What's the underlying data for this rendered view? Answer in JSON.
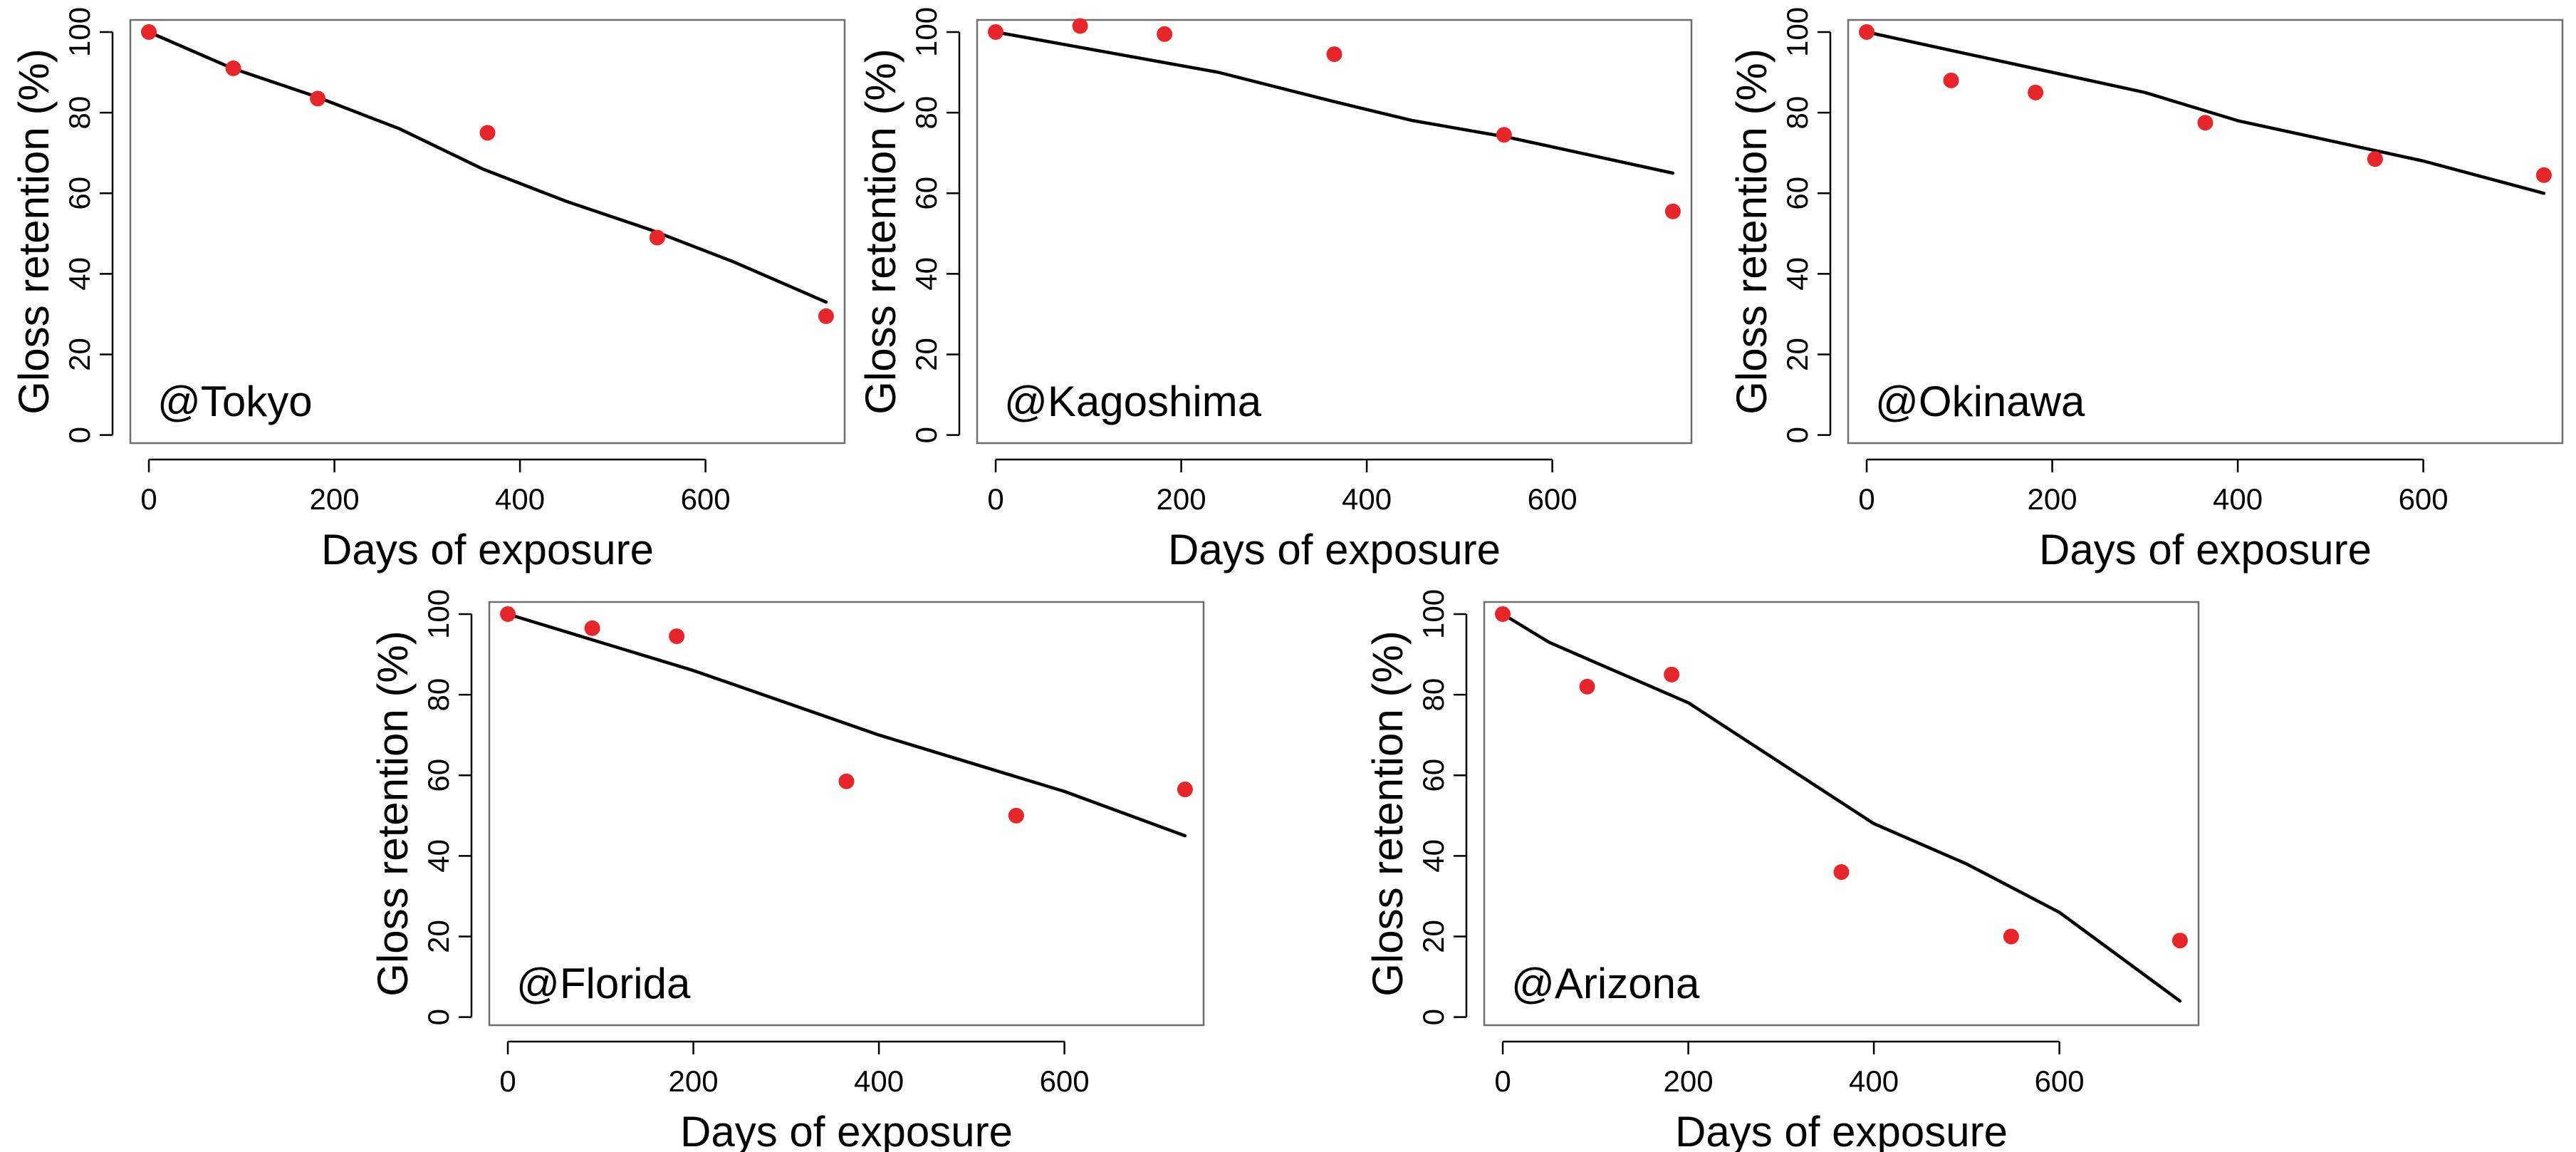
{
  "chart_data": [
    {
      "type": "scatter",
      "location": "@Tokyo",
      "xlabel": "Days of exposure",
      "ylabel": "Gloss retention (%)",
      "xlim": [
        -20,
        750
      ],
      "ylim": [
        -2,
        103
      ],
      "xticks": [
        0,
        200,
        400,
        600
      ],
      "yticks": [
        0,
        20,
        40,
        60,
        80,
        100
      ],
      "xtick_labels": [
        "0",
        "200",
        "400",
        "600"
      ],
      "ytick_labels": [
        "0",
        "20",
        "40",
        "60",
        "80",
        "100"
      ],
      "points": [
        {
          "x": 0,
          "y": 100
        },
        {
          "x": 91,
          "y": 91
        },
        {
          "x": 182,
          "y": 83.5
        },
        {
          "x": 365,
          "y": 75
        },
        {
          "x": 548,
          "y": 49
        },
        {
          "x": 730,
          "y": 29.5
        }
      ],
      "fit": [
        {
          "x": 0,
          "y": 100
        },
        {
          "x": 90,
          "y": 91
        },
        {
          "x": 180,
          "y": 84
        },
        {
          "x": 270,
          "y": 76
        },
        {
          "x": 360,
          "y": 66
        },
        {
          "x": 450,
          "y": 58
        },
        {
          "x": 540,
          "y": 51
        },
        {
          "x": 630,
          "y": 43
        },
        {
          "x": 730,
          "y": 33
        }
      ],
      "point_color": "#e8262a",
      "line_color": "#000000"
    },
    {
      "type": "scatter",
      "location": "@Kagoshima",
      "xlabel": "Days of exposure",
      "ylabel": "Gloss retention (%)",
      "xlim": [
        -20,
        750
      ],
      "ylim": [
        -2,
        103
      ],
      "xticks": [
        0,
        200,
        400,
        600
      ],
      "yticks": [
        0,
        20,
        40,
        60,
        80,
        100
      ],
      "xtick_labels": [
        "0",
        "200",
        "400",
        "600"
      ],
      "ytick_labels": [
        "0",
        "20",
        "40",
        "60",
        "80",
        "100"
      ],
      "points": [
        {
          "x": 0,
          "y": 100
        },
        {
          "x": 91,
          "y": 101.5
        },
        {
          "x": 182,
          "y": 99.5
        },
        {
          "x": 365,
          "y": 94.5
        },
        {
          "x": 548,
          "y": 74.5
        },
        {
          "x": 730,
          "y": 55.5
        }
      ],
      "fit": [
        {
          "x": 0,
          "y": 100
        },
        {
          "x": 120,
          "y": 95
        },
        {
          "x": 240,
          "y": 90
        },
        {
          "x": 360,
          "y": 83
        },
        {
          "x": 450,
          "y": 78
        },
        {
          "x": 550,
          "y": 74
        },
        {
          "x": 650,
          "y": 69
        },
        {
          "x": 730,
          "y": 65
        }
      ],
      "point_color": "#e8262a",
      "line_color": "#000000"
    },
    {
      "type": "scatter",
      "location": "@Okinawa",
      "xlabel": "Days of exposure",
      "ylabel": "Gloss retention (%)",
      "xlim": [
        -20,
        750
      ],
      "ylim": [
        -2,
        103
      ],
      "xticks": [
        0,
        200,
        400,
        600
      ],
      "yticks": [
        0,
        20,
        40,
        60,
        80,
        100
      ],
      "xtick_labels": [
        "0",
        "200",
        "400",
        "600"
      ],
      "ytick_labels": [
        "0",
        "20",
        "40",
        "60",
        "80",
        "100"
      ],
      "points": [
        {
          "x": 0,
          "y": 100
        },
        {
          "x": 91,
          "y": 88
        },
        {
          "x": 182,
          "y": 85
        },
        {
          "x": 365,
          "y": 77.5
        },
        {
          "x": 548,
          "y": 68.5
        },
        {
          "x": 730,
          "y": 64.5
        }
      ],
      "fit": [
        {
          "x": 0,
          "y": 100
        },
        {
          "x": 100,
          "y": 95
        },
        {
          "x": 200,
          "y": 90
        },
        {
          "x": 300,
          "y": 85
        },
        {
          "x": 400,
          "y": 78
        },
        {
          "x": 500,
          "y": 73
        },
        {
          "x": 600,
          "y": 68
        },
        {
          "x": 730,
          "y": 60
        }
      ],
      "point_color": "#e8262a",
      "line_color": "#000000"
    },
    {
      "type": "scatter",
      "location": "@Florida",
      "xlabel": "Days of exposure",
      "ylabel": "Gloss retention (%)",
      "xlim": [
        -20,
        750
      ],
      "ylim": [
        -2,
        103
      ],
      "xticks": [
        0,
        200,
        400,
        600
      ],
      "yticks": [
        0,
        20,
        40,
        60,
        80,
        100
      ],
      "xtick_labels": [
        "0",
        "200",
        "400",
        "600"
      ],
      "ytick_labels": [
        "0",
        "20",
        "40",
        "60",
        "80",
        "100"
      ],
      "points": [
        {
          "x": 0,
          "y": 100
        },
        {
          "x": 91,
          "y": 96.5
        },
        {
          "x": 182,
          "y": 94.5
        },
        {
          "x": 365,
          "y": 58.5
        },
        {
          "x": 548,
          "y": 50
        },
        {
          "x": 730,
          "y": 56.5
        }
      ],
      "fit": [
        {
          "x": 0,
          "y": 100
        },
        {
          "x": 100,
          "y": 93
        },
        {
          "x": 200,
          "y": 86
        },
        {
          "x": 300,
          "y": 78
        },
        {
          "x": 400,
          "y": 70
        },
        {
          "x": 500,
          "y": 63
        },
        {
          "x": 600,
          "y": 56
        },
        {
          "x": 730,
          "y": 45
        }
      ],
      "point_color": "#e8262a",
      "line_color": "#000000"
    },
    {
      "type": "scatter",
      "location": "@Arizona",
      "xlabel": "Days of exposure",
      "ylabel": "Gloss retention (%)",
      "xlim": [
        -20,
        750
      ],
      "ylim": [
        -2,
        103
      ],
      "xticks": [
        0,
        200,
        400,
        600
      ],
      "yticks": [
        0,
        20,
        40,
        60,
        80,
        100
      ],
      "xtick_labels": [
        "0",
        "200",
        "400",
        "600"
      ],
      "ytick_labels": [
        "0",
        "20",
        "40",
        "60",
        "80",
        "100"
      ],
      "points": [
        {
          "x": 0,
          "y": 100
        },
        {
          "x": 91,
          "y": 82
        },
        {
          "x": 182,
          "y": 85
        },
        {
          "x": 365,
          "y": 36
        },
        {
          "x": 548,
          "y": 20
        },
        {
          "x": 730,
          "y": 19
        }
      ],
      "fit": [
        {
          "x": 0,
          "y": 100
        },
        {
          "x": 50,
          "y": 93
        },
        {
          "x": 100,
          "y": 88
        },
        {
          "x": 200,
          "y": 78
        },
        {
          "x": 300,
          "y": 63
        },
        {
          "x": 400,
          "y": 48
        },
        {
          "x": 500,
          "y": 38
        },
        {
          "x": 600,
          "y": 26
        },
        {
          "x": 730,
          "y": 4
        }
      ],
      "point_color": "#e8262a",
      "line_color": "#000000"
    }
  ]
}
